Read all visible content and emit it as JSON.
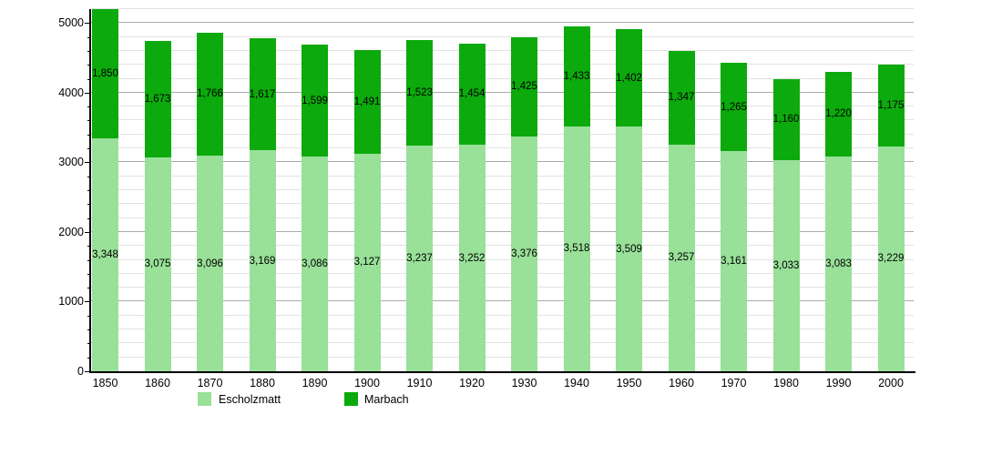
{
  "chart_data": {
    "type": "bar",
    "stacked": true,
    "title": "",
    "xlabel": "",
    "ylabel": "",
    "categories": [
      "1850",
      "1860",
      "1870",
      "1880",
      "1890",
      "1900",
      "1910",
      "1920",
      "1930",
      "1940",
      "1950",
      "1960",
      "1970",
      "1980",
      "1990",
      "2000"
    ],
    "series": [
      {
        "name": "Escholzmatt",
        "color": "#99e099",
        "values": [
          3348,
          3075,
          3096,
          3169,
          3086,
          3127,
          3237,
          3252,
          3376,
          3518,
          3509,
          3257,
          3161,
          3033,
          3083,
          3229
        ]
      },
      {
        "name": "Marbach",
        "color": "#0caa0c",
        "values": [
          1850,
          1673,
          1766,
          1617,
          1599,
          1491,
          1523,
          1454,
          1425,
          1433,
          1402,
          1347,
          1265,
          1160,
          1220,
          1175
        ]
      }
    ],
    "ylim": [
      0,
      5200
    ],
    "yticks_labeled": [
      0,
      1000,
      2000,
      3000,
      4000,
      5000
    ],
    "minor_grid_step": 200,
    "grid": true,
    "legend_position": "bottom",
    "value_labels_on_segments": true,
    "value_label_format": "thousands-comma"
  },
  "legend": {
    "items": [
      {
        "label": "Escholzmatt",
        "color": "#99e099"
      },
      {
        "label": "Marbach",
        "color": "#0caa0c"
      }
    ]
  },
  "colors": {
    "background": "#ffffff",
    "axis": "#000000",
    "minor_grid": "#e2e2e2",
    "major_grid": "#ababab",
    "label_text": "#000000"
  }
}
